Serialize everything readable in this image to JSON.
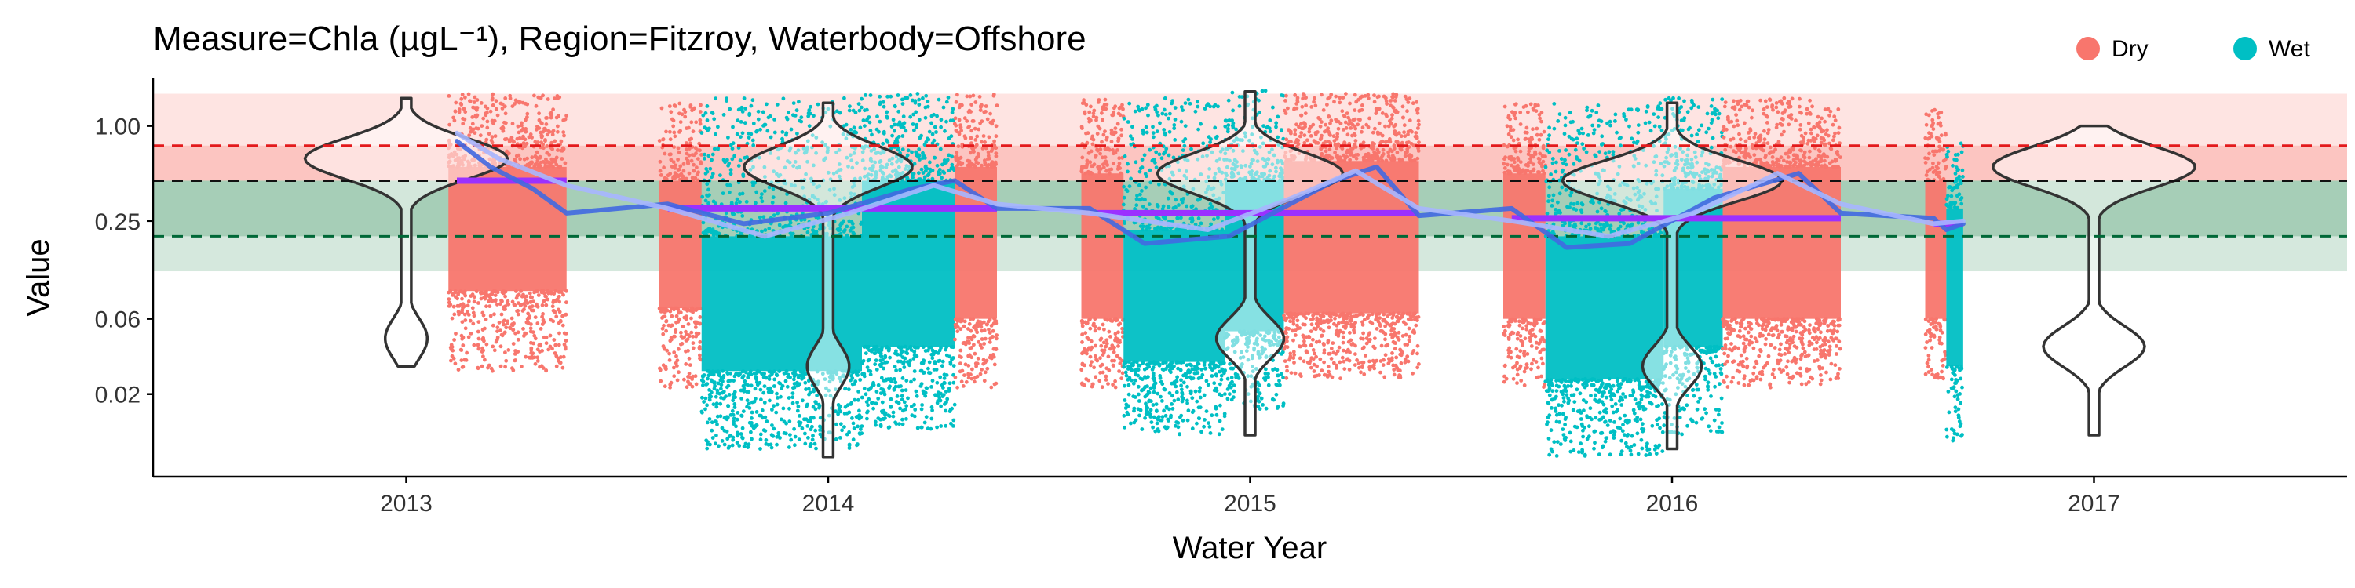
{
  "chart_data": {
    "type": "scatter",
    "title": "Measure=Chla (µgL⁻¹), Region=Fitzroy, Waterbody=Offshore",
    "xlabel": "Water Year",
    "ylabel": "Value",
    "y_scale": "log",
    "ylim": [
      0.006,
      2.0
    ],
    "xlim": [
      2012.4,
      2017.6
    ],
    "x_ticks": [
      {
        "value": 2013,
        "label": "2013"
      },
      {
        "value": 2014,
        "label": "2014"
      },
      {
        "value": 2015,
        "label": "2015"
      },
      {
        "value": 2016,
        "label": "2016"
      },
      {
        "value": 2017,
        "label": "2017"
      }
    ],
    "y_ticks": [
      {
        "value": 1.0,
        "label": "1.00"
      },
      {
        "value": 0.25,
        "label": "0.25"
      },
      {
        "value": 0.06,
        "label": "0.06"
      },
      {
        "value": 0.02,
        "label": "0.02"
      }
    ],
    "grid": false,
    "legend_position": "top-right",
    "series": [
      {
        "name": "Dry",
        "color": "#F8766D"
      },
      {
        "name": "Wet",
        "color": "#00BFC4"
      }
    ],
    "reference_lines": [
      {
        "value": 0.75,
        "color": "#E31A1C"
      },
      {
        "value": 0.45,
        "color": "#111111"
      },
      {
        "value": 0.2,
        "color": "#006837"
      }
    ],
    "threshold_bands": [
      {
        "from": 0.45,
        "to": 1.6,
        "color": "#F8766D"
      },
      {
        "from": 0.45,
        "to": 0.75,
        "color": "#F8766D"
      },
      {
        "from": 0.12,
        "to": 0.45,
        "color": "#2E8B57"
      },
      {
        "from": 0.2,
        "to": 0.45,
        "color": "#2E8B57"
      }
    ],
    "segments": [
      {
        "season": "Dry",
        "x0": 2013.1,
        "x1": 2013.38,
        "min": 0.028,
        "q1": 0.09,
        "q3": 0.55,
        "max": 1.6
      },
      {
        "season": "Dry",
        "x0": 2013.6,
        "x1": 2013.7,
        "min": 0.022,
        "q1": 0.07,
        "q3": 0.45,
        "max": 1.4
      },
      {
        "season": "Wet",
        "x0": 2013.7,
        "x1": 2014.08,
        "min": 0.009,
        "q1": 0.028,
        "q3": 0.2,
        "max": 1.5
      },
      {
        "season": "Wet",
        "x0": 2014.08,
        "x1": 2014.3,
        "min": 0.012,
        "q1": 0.04,
        "q3": 0.45,
        "max": 1.6
      },
      {
        "season": "Dry",
        "x0": 2014.3,
        "x1": 2014.4,
        "min": 0.022,
        "q1": 0.06,
        "q3": 0.55,
        "max": 1.6
      },
      {
        "season": "Dry",
        "x0": 2014.6,
        "x1": 2014.7,
        "min": 0.022,
        "q1": 0.06,
        "q3": 0.5,
        "max": 1.5
      },
      {
        "season": "Wet",
        "x0": 2014.7,
        "x1": 2014.94,
        "min": 0.011,
        "q1": 0.032,
        "q3": 0.22,
        "max": 1.5
      },
      {
        "season": "Wet",
        "x0": 2014.94,
        "x1": 2015.08,
        "min": 0.016,
        "q1": 0.05,
        "q3": 0.45,
        "max": 1.7
      },
      {
        "season": "Dry",
        "x0": 2015.08,
        "x1": 2015.4,
        "min": 0.025,
        "q1": 0.065,
        "q3": 0.6,
        "max": 1.6
      },
      {
        "season": "Dry",
        "x0": 2015.6,
        "x1": 2015.7,
        "min": 0.022,
        "q1": 0.06,
        "q3": 0.5,
        "max": 1.4
      },
      {
        "season": "Wet",
        "x0": 2015.7,
        "x1": 2015.98,
        "min": 0.008,
        "q1": 0.025,
        "q3": 0.2,
        "max": 1.4
      },
      {
        "season": "Wet",
        "x0": 2015.98,
        "x1": 2016.12,
        "min": 0.011,
        "q1": 0.04,
        "q3": 0.4,
        "max": 1.5
      },
      {
        "season": "Dry",
        "x0": 2016.12,
        "x1": 2016.4,
        "min": 0.022,
        "q1": 0.06,
        "q3": 0.55,
        "max": 1.5
      },
      {
        "season": "Dry",
        "x0": 2016.6,
        "x1": 2016.65,
        "min": 0.022,
        "q1": 0.06,
        "q3": 0.45,
        "max": 1.3
      },
      {
        "season": "Wet",
        "x0": 2016.65,
        "x1": 2016.69,
        "min": 0.01,
        "q1": 0.03,
        "q3": 0.3,
        "max": 0.8
      }
    ],
    "violins": [
      {
        "x": 2013,
        "top": 1.5,
        "bottom": 0.03,
        "modes": [
          {
            "y": 0.62,
            "width": 0.24
          },
          {
            "y": 0.045,
            "width": 0.05
          }
        ]
      },
      {
        "x": 2014,
        "top": 1.4,
        "bottom": 0.008,
        "modes": [
          {
            "y": 0.55,
            "width": 0.2
          },
          {
            "y": 0.03,
            "width": 0.05
          }
        ]
      },
      {
        "x": 2015,
        "top": 1.65,
        "bottom": 0.011,
        "modes": [
          {
            "y": 0.5,
            "width": 0.22
          },
          {
            "y": 0.045,
            "width": 0.08
          }
        ]
      },
      {
        "x": 2016,
        "top": 1.4,
        "bottom": 0.009,
        "modes": [
          {
            "y": 0.45,
            "width": 0.26
          },
          {
            "y": 0.03,
            "width": 0.07
          }
        ]
      },
      {
        "x": 2017,
        "top": 1.0,
        "bottom": 0.011,
        "modes": [
          {
            "y": 0.55,
            "width": 0.24
          },
          {
            "y": 0.04,
            "width": 0.12
          }
        ]
      }
    ],
    "yearly_means": [
      {
        "x0": 2013.12,
        "x1": 2013.38,
        "value": 0.45
      },
      {
        "x0": 2013.62,
        "x1": 2014.4,
        "value": 0.3
      },
      {
        "x0": 2014.62,
        "x1": 2015.4,
        "value": 0.28
      },
      {
        "x0": 2015.62,
        "x1": 2016.4,
        "value": 0.26
      },
      {
        "x0": 2016.62,
        "x1": 2016.69,
        "value": 0.24
      }
    ],
    "trend_lines": [
      {
        "color": "#4169E1",
        "points": [
          [
            2013.12,
            0.8
          ],
          [
            2013.2,
            0.55
          ],
          [
            2013.3,
            0.4
          ],
          [
            2013.38,
            0.28
          ],
          [
            2013.62,
            0.32
          ],
          [
            2013.8,
            0.24
          ],
          [
            2014.0,
            0.28
          ],
          [
            2014.2,
            0.4
          ],
          [
            2014.3,
            0.45
          ],
          [
            2014.4,
            0.3
          ],
          [
            2014.62,
            0.3
          ],
          [
            2014.75,
            0.18
          ],
          [
            2014.95,
            0.2
          ],
          [
            2015.2,
            0.45
          ],
          [
            2015.3,
            0.55
          ],
          [
            2015.4,
            0.27
          ],
          [
            2015.62,
            0.3
          ],
          [
            2015.75,
            0.17
          ],
          [
            2015.9,
            0.18
          ],
          [
            2016.1,
            0.35
          ],
          [
            2016.3,
            0.5
          ],
          [
            2016.4,
            0.28
          ],
          [
            2016.62,
            0.26
          ],
          [
            2016.65,
            0.22
          ],
          [
            2016.69,
            0.24
          ]
        ]
      },
      {
        "color": "#A7B6FF",
        "points": [
          [
            2013.12,
            0.9
          ],
          [
            2013.22,
            0.62
          ],
          [
            2013.38,
            0.42
          ],
          [
            2013.62,
            0.3
          ],
          [
            2013.85,
            0.2
          ],
          [
            2014.05,
            0.28
          ],
          [
            2014.25,
            0.42
          ],
          [
            2014.4,
            0.32
          ],
          [
            2014.62,
            0.28
          ],
          [
            2014.9,
            0.22
          ],
          [
            2015.1,
            0.35
          ],
          [
            2015.25,
            0.52
          ],
          [
            2015.4,
            0.3
          ],
          [
            2015.62,
            0.25
          ],
          [
            2015.85,
            0.2
          ],
          [
            2016.05,
            0.28
          ],
          [
            2016.25,
            0.5
          ],
          [
            2016.4,
            0.32
          ],
          [
            2016.62,
            0.24
          ],
          [
            2016.69,
            0.25
          ]
        ]
      }
    ]
  }
}
